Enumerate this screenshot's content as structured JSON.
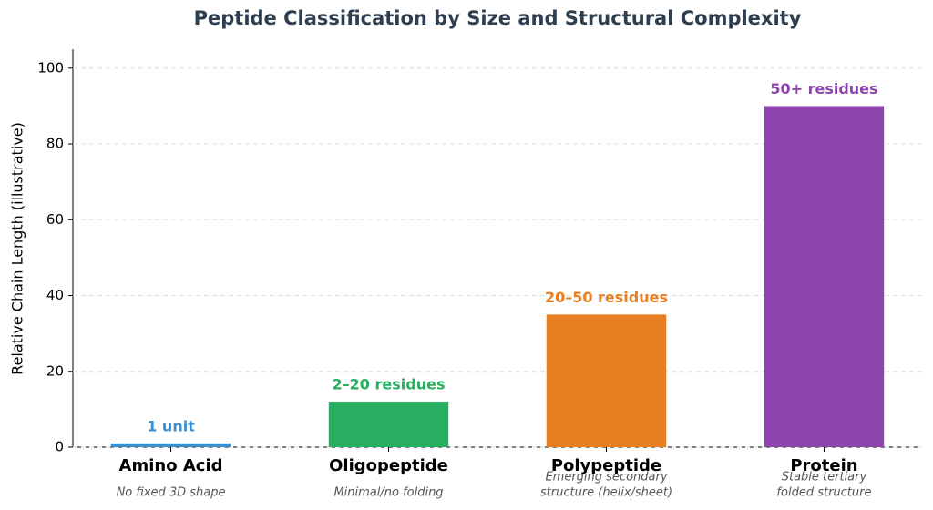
{
  "chart_data": {
    "type": "bar",
    "title": "Peptide Classification by Size and Structural Complexity",
    "y_label": "Relative Chain Length (illustrative)",
    "categories": [
      "Amino Acid",
      "Oligopeptide",
      "Polypeptide",
      "Protein"
    ],
    "descriptions": [
      [
        "No fixed 3D shape"
      ],
      [
        "Minimal/no folding"
      ],
      [
        "Emerging secondary",
        "structure (helix/sheet)"
      ],
      [
        "Stable tertiary",
        "folded structure"
      ]
    ],
    "values": [
      1,
      12,
      35,
      90
    ],
    "annotations": [
      "1 unit",
      "2–20 residues",
      "20–50 residues",
      "50+ residues"
    ],
    "colors": [
      "#3a8fd0",
      "#27ae60",
      "#e67e22",
      "#8e44ad"
    ],
    "ylim": [
      0,
      105
    ],
    "yticks": [
      0,
      20,
      40,
      60,
      80,
      100
    ],
    "grid": true
  }
}
